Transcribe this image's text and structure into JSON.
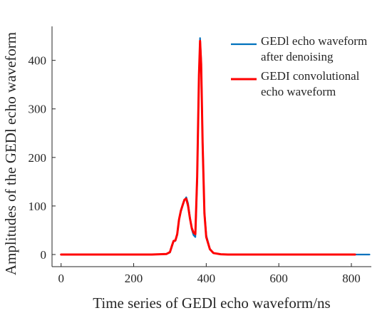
{
  "chart_data": {
    "type": "line",
    "title": "",
    "xlabel": "Time series of GEDl echo waveform/ns",
    "ylabel": "Amplitudes of the GEDl echo waveform",
    "xlim": [
      -25,
      855
    ],
    "ylim": [
      -25,
      470
    ],
    "xticks": [
      0,
      200,
      400,
      600,
      800
    ],
    "yticks": [
      0,
      100,
      200,
      300,
      400
    ],
    "grid": false,
    "legend_position": "top-right",
    "colors": {
      "axis": "#262626",
      "series_1": "#0072BD",
      "series_2": "#FF0000"
    },
    "series": [
      {
        "name": "GEDl echo waveform after denoising",
        "legend_lines": [
          "GEDl echo waveform",
          "after denoising"
        ],
        "x": [
          0,
          250,
          290,
          300,
          305,
          310,
          315,
          320,
          325,
          330,
          335,
          340,
          345,
          350,
          355,
          360,
          365,
          370,
          375,
          380,
          383,
          386,
          390,
          395,
          400,
          410,
          420,
          440,
          460,
          500,
          600,
          700,
          800,
          850
        ],
        "values": [
          0,
          0,
          1,
          4,
          15,
          27,
          28,
          40,
          70,
          88,
          100,
          112,
          118,
          105,
          78,
          52,
          40,
          36,
          150,
          360,
          446,
          400,
          240,
          90,
          40,
          12,
          3,
          0.5,
          0,
          0,
          0,
          0,
          0,
          0
        ]
      },
      {
        "name": "GEDI convolutional echo waveform",
        "legend_lines": [
          "GEDI convolutional",
          "echo waveform"
        ],
        "x": [
          0,
          250,
          290,
          300,
          305,
          310,
          315,
          320,
          325,
          330,
          335,
          340,
          345,
          350,
          355,
          360,
          365,
          370,
          375,
          380,
          383,
          386,
          390,
          395,
          400,
          410,
          420,
          440,
          460,
          500,
          600,
          700,
          810
        ],
        "values": [
          0,
          0,
          1,
          5,
          17,
          28,
          29,
          42,
          72,
          90,
          102,
          113,
          115,
          100,
          75,
          55,
          45,
          42,
          160,
          370,
          440,
          392,
          230,
          85,
          36,
          11,
          3,
          0.5,
          0,
          0,
          0,
          0,
          0
        ]
      }
    ]
  }
}
